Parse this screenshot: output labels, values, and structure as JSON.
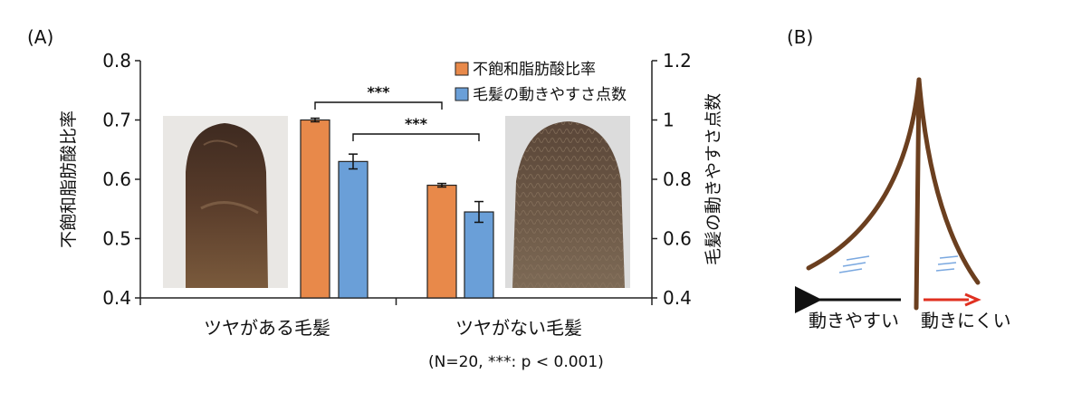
{
  "panels": {
    "a": "(A)",
    "b": "(B)"
  },
  "chart_data": {
    "type": "bar",
    "categories": [
      "ツヤがある毛髪",
      "ツヤがない毛髪"
    ],
    "left_axis": {
      "label": "不飽和脂肪酸比率",
      "ylim": [
        0.4,
        0.8
      ],
      "ticks": [
        "0.4",
        "0.5",
        "0.6",
        "0.7",
        "0.8"
      ]
    },
    "right_axis": {
      "label": "毛髪の動きやすさ点数",
      "ylim": [
        0.4,
        1.2
      ],
      "ticks": [
        "0.4",
        "0.6",
        "0.8",
        "1",
        "1.2"
      ]
    },
    "series": [
      {
        "name": "不飽和脂肪酸比率",
        "axis": "left",
        "color": "#e8894a",
        "values": [
          0.7,
          0.59
        ],
        "errors": [
          0.003,
          0.003
        ]
      },
      {
        "name": "毛髪の動きやすさ点数",
        "axis": "right",
        "color": "#6a9fd8",
        "values": [
          0.86,
          0.69
        ],
        "errors": [
          0.025,
          0.035
        ]
      }
    ],
    "significance": [
      {
        "label": "***",
        "series": "不飽和脂肪酸比率"
      },
      {
        "label": "***",
        "series": "毛髪の動きやすさ点数"
      }
    ],
    "legend_position": "top-right",
    "grid": false,
    "note": "(N=20, ***: p < 0.001)"
  },
  "diagram_b": {
    "left_label": "動きやすい",
    "right_label": "動きにくい",
    "colors": {
      "hair": "#6b3f1f",
      "left_arrow": "#111111",
      "right_arrow": "#e03020",
      "motion_lines": "#7aa8e0"
    }
  }
}
